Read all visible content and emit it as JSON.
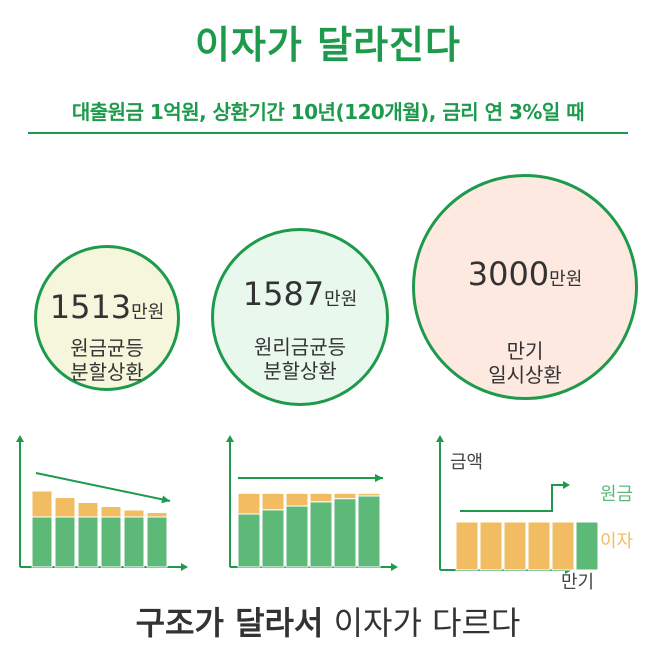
{
  "title": "이자가 달라진다",
  "subtitle": "대출원금 1억원, 상환기간 10년(120개월), 금리 연 3%일 때",
  "colors": {
    "green_dark": "#1e9a4c",
    "bar_green": "#5cb978",
    "bar_orange": "#f2bd62",
    "circle1_bg": "#f6f6dd",
    "circle2_bg": "#e9f8ed",
    "circle3_bg": "#fde9e0"
  },
  "methods": [
    {
      "amount": "1513",
      "unit": "만원",
      "label_line1": "원금균등",
      "label_line2": "분할상환"
    },
    {
      "amount": "1587",
      "unit": "만원",
      "label_line1": "원리금균등",
      "label_line2": "분할상환"
    },
    {
      "amount": "3000",
      "unit": "만원",
      "label_line1": "만기",
      "label_line2": "일시상환"
    }
  ],
  "chart_data": [
    {
      "type": "bar",
      "stacked": true,
      "series": [
        {
          "color": "#5cb978",
          "values": [
            1,
            1,
            1,
            1,
            1,
            1
          ]
        },
        {
          "color": "#f2bd62",
          "values": [
            0.52,
            0.39,
            0.29,
            0.21,
            0.14,
            0.09
          ]
        }
      ],
      "trend_arrow": "down"
    },
    {
      "type": "bar",
      "stacked": true,
      "series": [
        {
          "color": "#5cb978",
          "values": [
            1.0,
            1.08,
            1.15,
            1.23,
            1.29,
            1.34
          ]
        },
        {
          "color": "#f2bd62",
          "values": [
            0.39,
            0.31,
            0.24,
            0.16,
            0.1,
            0.05
          ]
        }
      ],
      "trend_arrow": "flat"
    },
    {
      "type": "bar",
      "stacked": true,
      "ylabel": "금액",
      "xlabel": "만기",
      "legend": [
        "원금",
        "이자"
      ],
      "series": [
        {
          "name": "원금",
          "color": "#5cb978",
          "values": [
            0,
            0,
            0,
            0,
            0,
            1
          ]
        },
        {
          "name": "이자",
          "color": "#f2bd62",
          "values": [
            1,
            1,
            1,
            1,
            1,
            0
          ]
        }
      ],
      "trend_arrow": "step-up"
    }
  ],
  "conclusion": {
    "strong": "구조가 달라서",
    "rest": " 이자가 다르다"
  }
}
